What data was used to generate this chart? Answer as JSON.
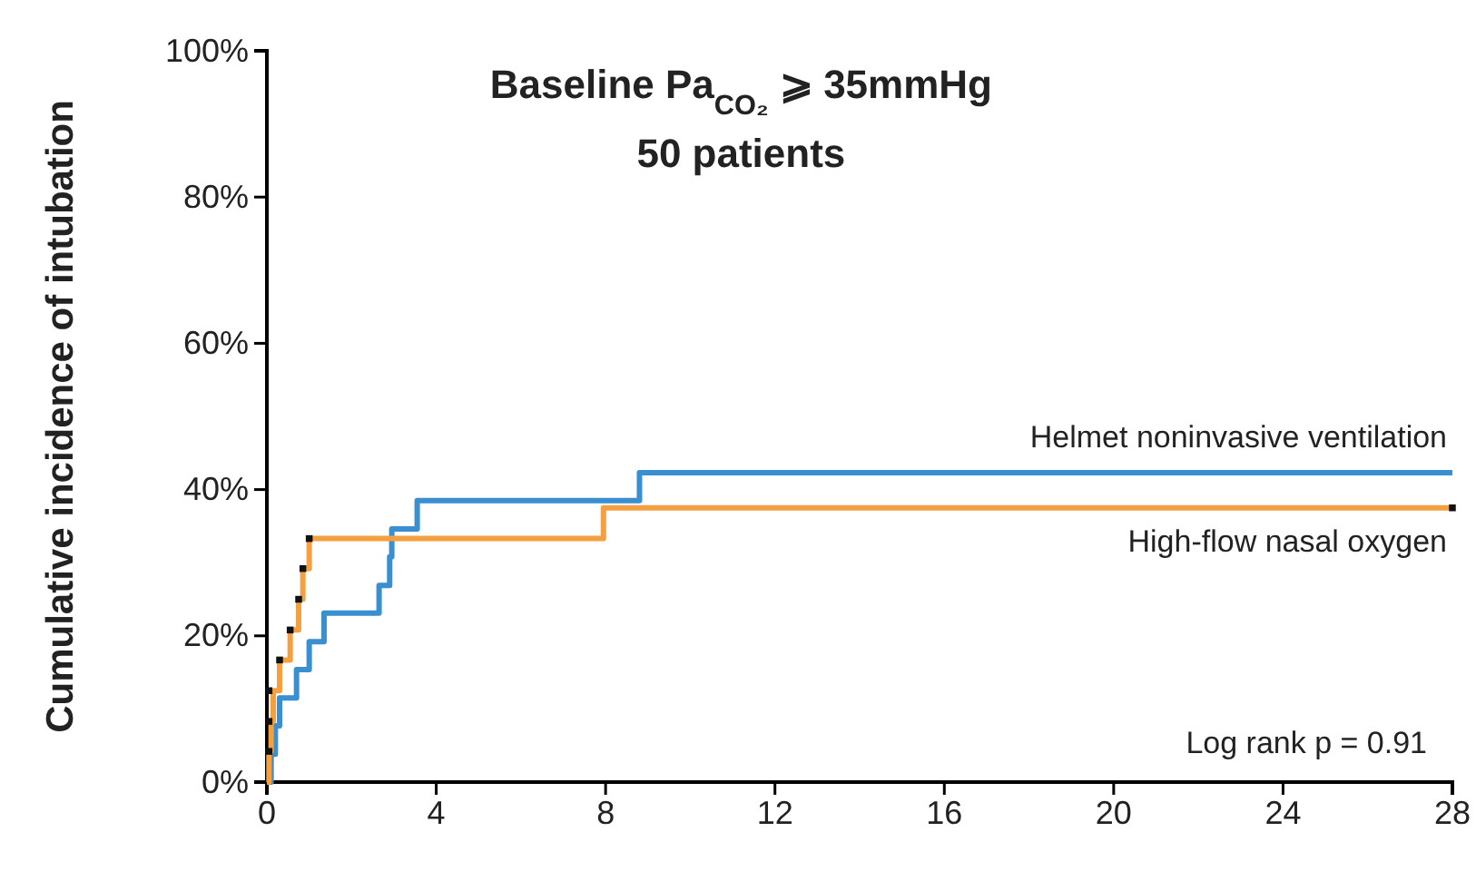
{
  "chart_data": {
    "type": "step",
    "title": "Baseline Pa$_{CO₂}$ ⩾ 35mmHg",
    "subtitle": "50 patients",
    "ylabel": "Cumulative incidence of intubation",
    "xlim": [
      0,
      28
    ],
    "xticks": [
      0,
      4,
      8,
      12,
      16,
      20,
      24,
      28
    ],
    "ylim": [
      0,
      100
    ],
    "yticks": [
      {
        "value": 0,
        "label": "0%"
      },
      {
        "value": 20,
        "label": "20%"
      },
      {
        "value": 40,
        "label": "40%"
      },
      {
        "value": 60,
        "label": "60%"
      },
      {
        "value": 80,
        "label": "80%"
      },
      {
        "value": 100,
        "label": "100%"
      }
    ],
    "grid": false,
    "legend": false,
    "annotations": [
      "Log rank p = 0.91"
    ],
    "series": [
      {
        "name": "Helmet noninvasive ventilation",
        "color": "#3a8fd0",
        "x": [
          0,
          0.1,
          0.2,
          0.3,
          0.7,
          1.0,
          1.35,
          2.65,
          2.9,
          2.95,
          3.55,
          8.8,
          28
        ],
        "values": [
          0,
          3.8,
          7.7,
          11.5,
          15.4,
          19.2,
          23.1,
          26.9,
          30.8,
          34.6,
          38.5,
          42.3,
          42.3
        ]
      },
      {
        "name": "High-flow nasal oxygen",
        "color": "#f5a040",
        "x": [
          0,
          0.05,
          0.1,
          0.15,
          0.3,
          0.55,
          0.75,
          0.85,
          1.0,
          7.95,
          28
        ],
        "values": [
          0,
          4.2,
          8.3,
          12.5,
          16.7,
          20.8,
          25,
          29.2,
          33.3,
          37.5,
          37.5
        ]
      },
      {
        "type": "scatter",
        "color": "#111111",
        "marker": "square",
        "x": [
          0.05,
          0.05,
          0.05,
          0.3,
          0.55,
          0.75,
          0.85,
          1.0,
          28
        ],
        "values": [
          4.2,
          8.3,
          12.5,
          16.7,
          20.8,
          25,
          29.2,
          33.3,
          37.5
        ]
      }
    ]
  }
}
